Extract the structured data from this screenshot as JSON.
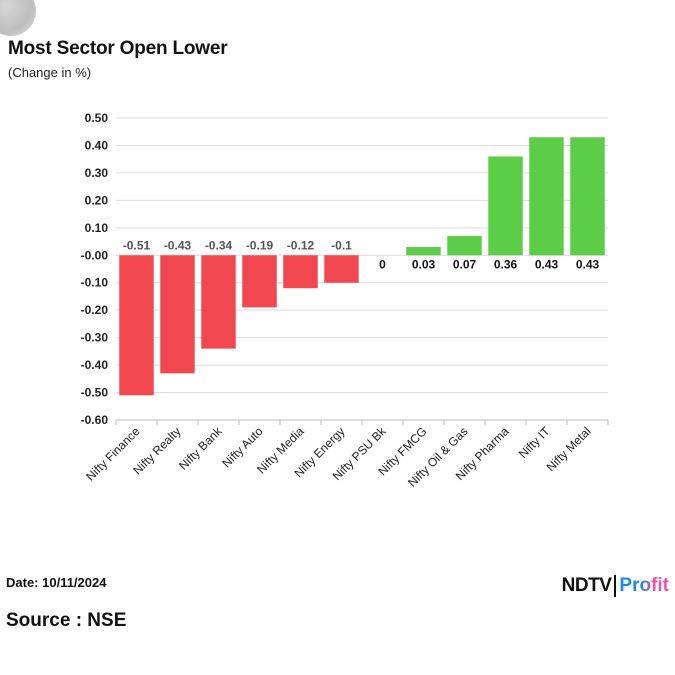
{
  "header": {
    "title": "Most Sector Open Lower",
    "subtitle": "(Change in %)"
  },
  "footer": {
    "date": "Date: 10/11/2024",
    "source": "Source : NSE",
    "logo_brand": "NDTV",
    "logo_profit": "Profit"
  },
  "colors": {
    "negative": "#f2474f",
    "positive": "#5ccd46",
    "grid": "#dcdcdc",
    "axis": "#bdbdbd"
  },
  "chart_data": {
    "type": "bar",
    "title": "Most Sector Open Lower",
    "subtitle": "(Change in %)",
    "xlabel": "",
    "ylabel": "",
    "categories": [
      "Nifty Finance",
      "Nifty Realty",
      "Nifty Bank",
      "Nifty Auto",
      "Nifty Media",
      "Nifty Energy",
      "Nifty PSU Bk",
      "Nifty FMCG",
      "Nifty Oil & Gas",
      "Nifty Pharma",
      "Nifty IT",
      "Nifty Metal"
    ],
    "values": [
      -0.51,
      -0.43,
      -0.34,
      -0.19,
      -0.12,
      -0.1,
      0,
      0.03,
      0.07,
      0.36,
      0.43,
      0.43
    ],
    "data_labels": [
      "-0.51",
      "-0.43",
      "-0.34",
      "-0.19",
      "-0.12",
      "-0.1",
      "0",
      "0.03",
      "0.07",
      "0.36",
      "0.43",
      "0.43"
    ],
    "yticks": [
      "0.50",
      "0.40",
      "0.30",
      "0.20",
      "0.10",
      "-0.00",
      "-0.10",
      "-0.20",
      "-0.30",
      "-0.40",
      "-0.50",
      "-0.60"
    ],
    "ylim": [
      -0.6,
      0.5
    ],
    "grid": true,
    "legend": "none"
  }
}
